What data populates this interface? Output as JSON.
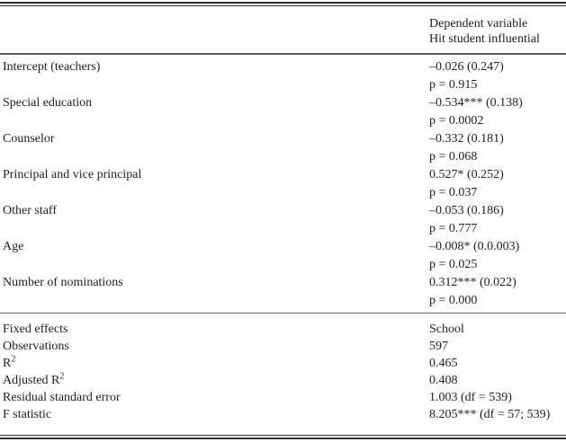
{
  "header": {
    "line1": "Dependent variable",
    "line2": "Hit student influential"
  },
  "coefficients": [
    {
      "label": "Intercept (teachers)",
      "estimate": "–0.026 (0.247)",
      "p": "p = 0.915"
    },
    {
      "label": "Special education",
      "estimate": "–0.534*** (0.138)",
      "p": "p = 0.0002"
    },
    {
      "label": "Counselor",
      "estimate": "–0.332 (0.181)",
      "p": "p = 0.068"
    },
    {
      "label": "Principal and vice principal",
      "estimate": "0.527* (0.252)",
      "p": "p = 0.037"
    },
    {
      "label": "Other staff",
      "estimate": "–0.053 (0.186)",
      "p": "p = 0.777"
    },
    {
      "label": "Age",
      "estimate": "–0.008* (0.0.003)",
      "p": "p = 0.025"
    },
    {
      "label": "Number of nominations",
      "estimate": "0.312*** (0.022)",
      "p": "p = 0.000"
    }
  ],
  "model_stats": [
    {
      "label": "Fixed effects",
      "value": "School"
    },
    {
      "label": "Observations",
      "value": "597"
    },
    {
      "label": "R",
      "sup": "2",
      "value": "0.465"
    },
    {
      "label": "Adjusted R",
      "sup": "2",
      "value": "0.408"
    },
    {
      "label": "Residual standard error",
      "value": "1.003 (df = 539)"
    },
    {
      "label": "F statistic",
      "value": "8.205*** (df = 57; 539)"
    }
  ],
  "colors": {
    "text": "#1f1f1f",
    "rule_dark": "#2e2e2e",
    "rule_gray": "#6e6e6e"
  }
}
